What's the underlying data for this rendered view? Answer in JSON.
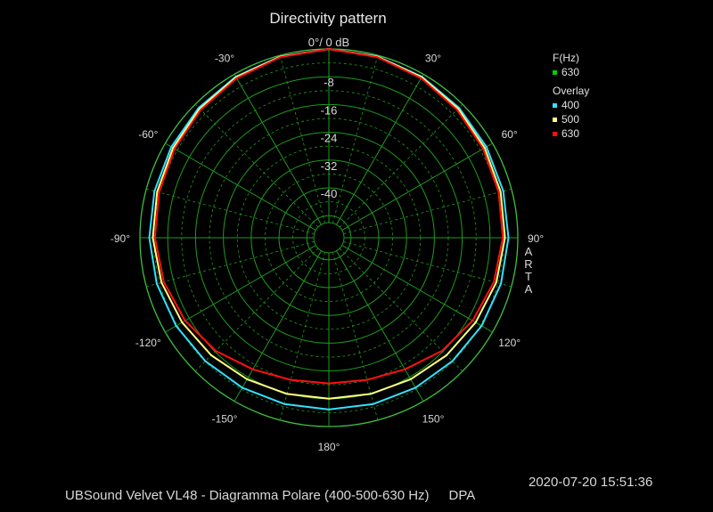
{
  "title": "Directivity pattern",
  "legend": {
    "freq_header": "F(Hz)",
    "freq_value": "630",
    "freq_color": "#00d000",
    "overlay_header": "Overlay",
    "overlay_items": [
      {
        "label": "400",
        "color": "#33e0ff"
      },
      {
        "label": "500",
        "color": "#ffff80"
      },
      {
        "label": "630",
        "color": "#ff1010"
      }
    ]
  },
  "vertical_label": [
    "A",
    "R",
    "T",
    "A"
  ],
  "footer": {
    "caption": "UBSound Velvet VL48 - Diagramma Polare (400-500-630 Hz)",
    "tag": "DPA",
    "timestamp": "2020-07-20  15:51:36"
  },
  "chart_data": {
    "type": "polar-line",
    "radial_unit": "dB",
    "radial_range": [
      -50,
      0
    ],
    "radial_ticks": [
      {
        "value": 0,
        "label": "0°/ 0 dB"
      },
      {
        "value": -8,
        "label": "-8"
      },
      {
        "value": -16,
        "label": "-16"
      },
      {
        "value": -24,
        "label": "-24"
      },
      {
        "value": -32,
        "label": "-32"
      },
      {
        "value": -40,
        "label": "-40"
      }
    ],
    "angle_labels": [
      {
        "angle": -30,
        "label": "-30°"
      },
      {
        "angle": 30,
        "label": "30°"
      },
      {
        "angle": -60,
        "label": "-60°"
      },
      {
        "angle": 60,
        "label": "60°"
      },
      {
        "angle": -90,
        "label": "-90°"
      },
      {
        "angle": 90,
        "label": "90°"
      },
      {
        "angle": -120,
        "label": "-120°"
      },
      {
        "angle": 120,
        "label": "120°"
      },
      {
        "angle": -150,
        "label": "-150°"
      },
      {
        "angle": 150,
        "label": "150°"
      },
      {
        "angle": 180,
        "label": "180°"
      }
    ],
    "grid": true,
    "angles": [
      0,
      15,
      30,
      45,
      60,
      75,
      90,
      105,
      120,
      135,
      150,
      165,
      180,
      195,
      210,
      225,
      240,
      255,
      270,
      285,
      300,
      315,
      330,
      345
    ],
    "series": [
      {
        "name": "400",
        "color": "#33e0ff",
        "values": [
          0,
          -0.3,
          -0.8,
          -1.4,
          -2.0,
          -2.4,
          -2.7,
          -3.1,
          -3.6,
          -4.1,
          -4.5,
          -4.8,
          -4.9,
          -4.8,
          -4.5,
          -4.1,
          -3.6,
          -3.1,
          -2.7,
          -2.4,
          -2.0,
          -1.4,
          -0.8,
          -0.3
        ]
      },
      {
        "name": "500",
        "color": "#ffff80",
        "values": [
          0,
          -0.4,
          -1.0,
          -1.8,
          -2.6,
          -3.2,
          -3.7,
          -4.5,
          -5.6,
          -6.5,
          -7.3,
          -7.8,
          -8.0,
          -7.8,
          -7.3,
          -6.5,
          -5.6,
          -4.5,
          -3.7,
          -3.2,
          -2.6,
          -1.8,
          -1.0,
          -0.4
        ]
      },
      {
        "name": "630",
        "color": "#ff1010",
        "values": [
          0,
          -0.5,
          -1.3,
          -2.2,
          -3.1,
          -3.8,
          -4.3,
          -5.2,
          -6.6,
          -8.3,
          -10.6,
          -12.0,
          -12.4,
          -12.0,
          -10.6,
          -8.3,
          -6.6,
          -5.2,
          -4.3,
          -3.8,
          -3.1,
          -2.2,
          -1.3,
          -0.5
        ]
      }
    ]
  }
}
